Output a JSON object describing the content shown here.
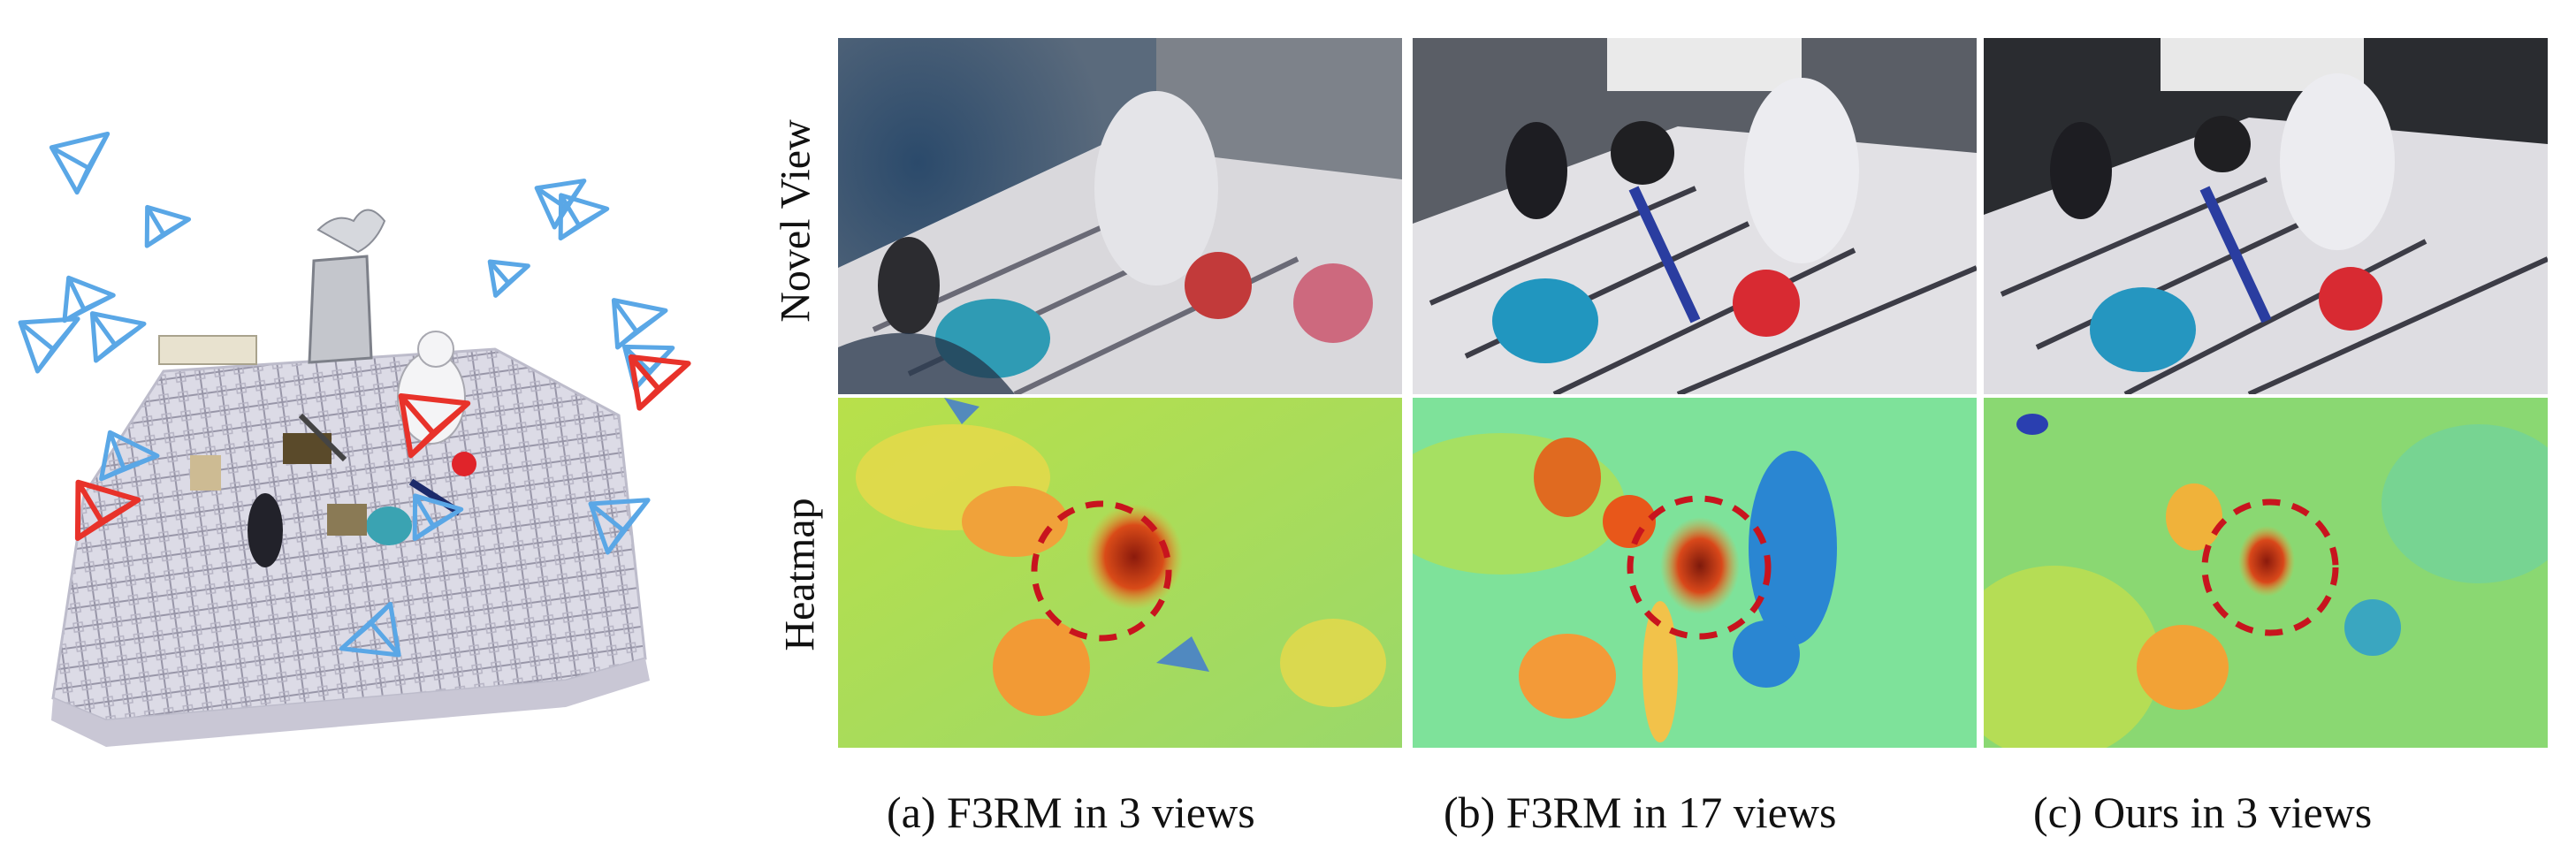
{
  "row_labels": {
    "novel_view": "Novel View",
    "heatmap": "Heatmap"
  },
  "columns": [
    {
      "caption": "(a)  F3RM in 3 views"
    },
    {
      "caption": "(b)  F3RM in 17 views"
    },
    {
      "caption": "(c)  Ours in 3 views"
    }
  ],
  "colors": {
    "camera_training": "#5aa7e6",
    "camera_highlight": "#e8322a",
    "target_circle": "#c8141e"
  }
}
